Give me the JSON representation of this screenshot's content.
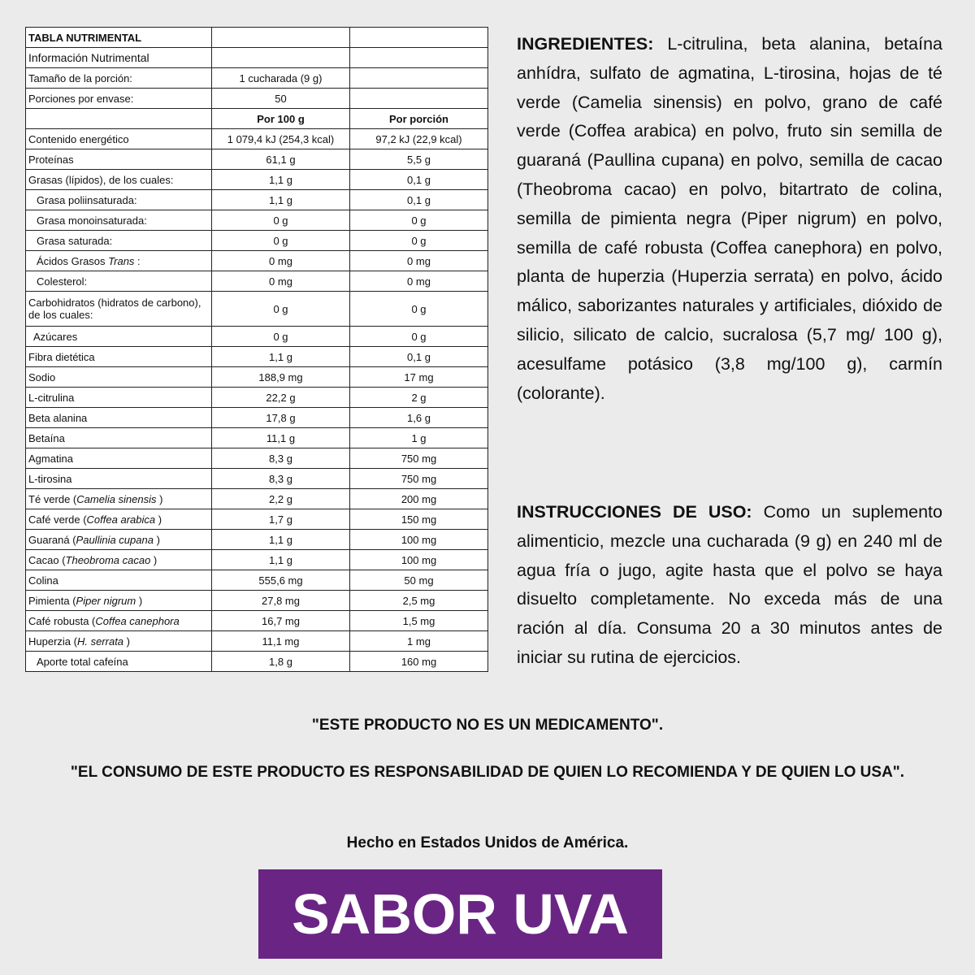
{
  "table": {
    "title": "TABLA NUTRIMENTAL",
    "subtitle": "Información Nutrimental",
    "serving": {
      "label": "Tamaño de la porción:",
      "value": "1 cucharada (9 g)"
    },
    "servings_per_container": {
      "label": "Porciones por envase:",
      "value": "50"
    },
    "header": [
      "Por 100 g",
      "Por porción"
    ],
    "rows": [
      {
        "label": [
          "Contenido energético"
        ],
        "per_100g": "1 079,4 kJ (254,3 kcal)",
        "per_portion": "97,2 kJ (22,9 kcal)"
      },
      {
        "label": [
          "Proteínas"
        ],
        "per_100g": "61,1 g",
        "per_portion": "5,5 g"
      },
      {
        "label": [
          "Grasas (lípidos), de los cuales:"
        ],
        "per_100g": "1,1 g",
        "per_portion": "0,1 g"
      },
      {
        "label": [
          "Grasa poliinsaturada:"
        ],
        "per_100g": "1,1 g",
        "per_portion": "0,1 g"
      },
      {
        "label": [
          "Grasa monoinsaturada:"
        ],
        "per_100g": "0 g",
        "per_portion": "0 g"
      },
      {
        "label": [
          "Grasa saturada:"
        ],
        "per_100g": "0 g",
        "per_portion": "0 g"
      },
      {
        "label": [
          "Ácidos Grasos ",
          "Trans",
          " :"
        ],
        "per_100g": "0 mg",
        "per_portion": "0 mg"
      },
      {
        "label": [
          "Colesterol:"
        ],
        "per_100g": "0 mg",
        "per_portion": "0 mg"
      },
      {
        "label": [
          "Carbohidratos (hidratos de carbono), de los cuales:"
        ],
        "per_100g": "0 g",
        "per_portion": "0 g"
      },
      {
        "label": [
          "Azúcares"
        ],
        "per_100g": "0 g",
        "per_portion": "0 g"
      },
      {
        "label": [
          "Fibra dietética"
        ],
        "per_100g": "1,1 g",
        "per_portion": "0,1 g"
      },
      {
        "label": [
          "Sodio"
        ],
        "per_100g": "188,9 mg",
        "per_portion": "17 mg"
      },
      {
        "label": [
          "L-citrulina"
        ],
        "per_100g": "22,2 g",
        "per_portion": "2 g"
      },
      {
        "label": [
          "Beta alanina"
        ],
        "per_100g": "17,8 g",
        "per_portion": "1,6 g"
      },
      {
        "label": [
          "Betaína"
        ],
        "per_100g": "11,1 g",
        "per_portion": "1 g"
      },
      {
        "label": [
          "Agmatina"
        ],
        "per_100g": "8,3 g",
        "per_portion": "750 mg"
      },
      {
        "label": [
          "L-tirosina"
        ],
        "per_100g": "8,3 g",
        "per_portion": "750 mg"
      },
      {
        "label": [
          "Té verde (",
          "Camelia sinensis",
          " )"
        ],
        "per_100g": "2,2 g",
        "per_portion": "200 mg"
      },
      {
        "label": [
          "Café verde (",
          "Coffea arabica",
          " )"
        ],
        "per_100g": "1,7 g",
        "per_portion": "150 mg"
      },
      {
        "label": [
          "Guaraná (",
          "Paullinia cupana",
          " )"
        ],
        "per_100g": "1,1 g",
        "per_portion": "100 mg"
      },
      {
        "label": [
          "Cacao (",
          "Theobroma cacao",
          " )"
        ],
        "per_100g": "1,1 g",
        "per_portion": "100 mg"
      },
      {
        "label": [
          "Colina"
        ],
        "per_100g": "555,6 mg",
        "per_portion": "50 mg"
      },
      {
        "label": [
          "Pimienta (",
          "Piper nigrum",
          " )"
        ],
        "per_100g": "27,8 mg",
        "per_portion": "2,5 mg"
      },
      {
        "label": [
          "Café robusta (",
          "Coffea canephora"
        ],
        "per_100g": "16,7 mg",
        "per_portion": "1,5 mg"
      },
      {
        "label": [
          "Huperzia (",
          "H. serrata",
          " )"
        ],
        "per_100g": "11,1 mg",
        "per_portion": "1 mg"
      },
      {
        "label": [
          "Aporte total cafeína"
        ],
        "per_100g": "1,8 g",
        "per_portion": "160 mg"
      }
    ]
  },
  "ingredients": {
    "label": "INGREDIENTES:",
    "text": "L-citrulina, beta alanina, betaína anhídra, sulfato de agmatina, L-tirosina, hojas de té verde (Camelia sinensis) en polvo, grano de café verde (Coffea arabica) en polvo, fruto sin semilla de guaraná (Paullina cupana) en polvo, semilla de cacao (Theobroma cacao) en polvo, bitartrato de colina, semilla de pimienta negra (Piper nigrum) en polvo, semilla de café robusta (Coffea canephora) en polvo, planta de huperzia (Huperzia serrata) en polvo, ácido málico, saborizantes naturales y artificiales, dióxido de silicio, silicato de calcio, sucralosa (5,7 mg/ 100 g), acesulfame potásico (3,8 mg/100 g), carmín (colorante)."
  },
  "instructions": {
    "label": "INSTRUCCIONES DE USO:",
    "text": "Como un suplemento alimenticio, mezcle una cucharada (9 g) en 240 ml de agua fría o jugo, agite hasta que el polvo se haya disuelto completamente. No exceda más de una ración al día. Consuma 20 a 30 minutos antes de iniciar su rutina de ejercicios."
  },
  "notes": [
    "\"ESTE PRODUCTO NO ES UN MEDICAMENTO\".",
    "\"EL CONSUMO DE ESTE PRODUCTO ES RESPONSABILIDAD DE QUIEN LO RECOMIENDA Y DE QUIEN LO USA\".",
    "Hecho en Estados Unidos de América."
  ],
  "flavor": "SABOR UVA"
}
